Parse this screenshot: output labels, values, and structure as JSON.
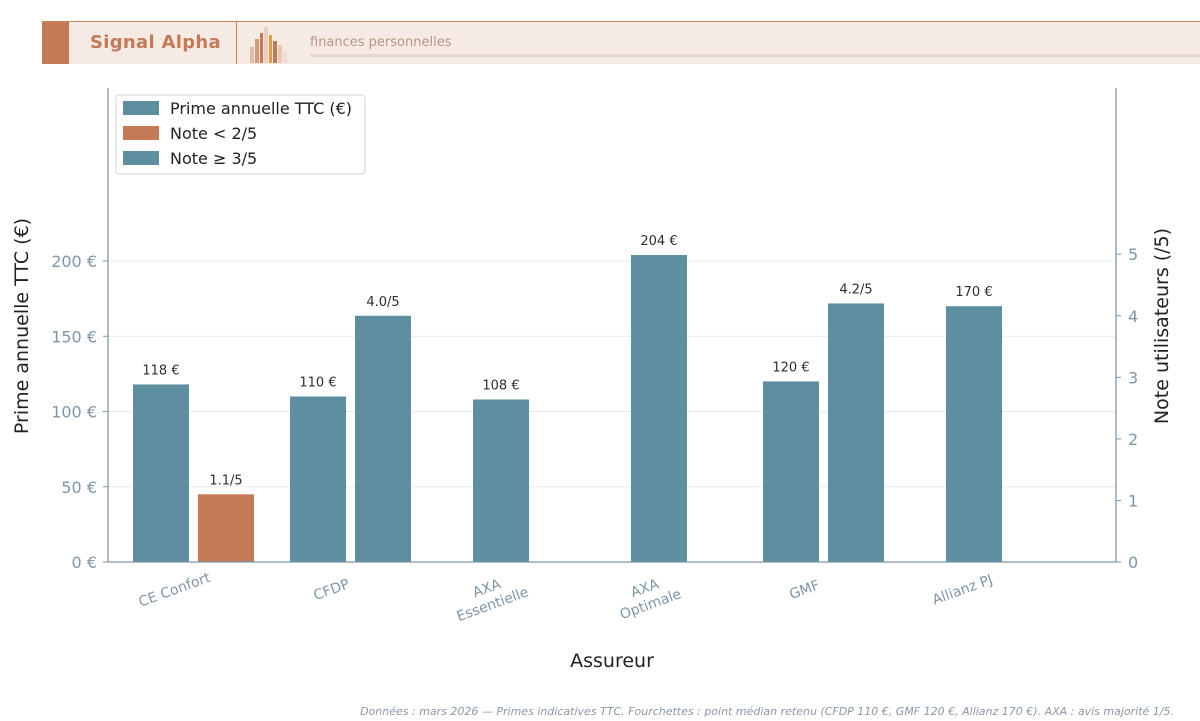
{
  "header": {
    "brand": "Signal Alpha",
    "tagline": "finances personnelles"
  },
  "colors": {
    "accent": "#c47a57",
    "bar_teal": "#5d8fa0",
    "axis": "#7e97a8",
    "header_bg": "#f6ebe4"
  },
  "chart_data": {
    "type": "bar",
    "xlabel": "Assureur",
    "ylabel_left": "Prime annuelle TTC (€)",
    "ylabel_right": "Note utilisateurs (/5)",
    "ylim_left": [
      0,
      315
    ],
    "ylim_right": [
      0,
      7.7
    ],
    "left_ticks": [
      "0 €",
      "50 €",
      "100 €",
      "150 €",
      "200 €"
    ],
    "left_tick_values": [
      0,
      50,
      100,
      150,
      200
    ],
    "right_ticks": [
      "0",
      "1",
      "2",
      "3",
      "4",
      "5"
    ],
    "right_tick_values": [
      0,
      1,
      2,
      3,
      4,
      5
    ],
    "grid": true,
    "legend_position": "top-left",
    "legend": [
      {
        "label": "Prime annuelle TTC (€)",
        "color": "#5d8fa0"
      },
      {
        "label": "Note < 2/5",
        "color": "#c47a57"
      },
      {
        "label": "Note ≥ 3/5",
        "color": "#5d8fa0"
      }
    ],
    "categories": [
      [
        "CE Confort"
      ],
      [
        "CFDP"
      ],
      [
        "AXA",
        "Essentielle"
      ],
      [
        "AXA",
        "Optimale"
      ],
      [
        "GMF"
      ],
      [
        "Allianz PJ"
      ]
    ],
    "premium": {
      "values": [
        118,
        110,
        108,
        204,
        120,
        170
      ],
      "labels": [
        "118 €",
        "110 €",
        "108 €",
        "204 €",
        "120 €",
        "170 €"
      ]
    },
    "rating": {
      "values": [
        1.1,
        4.0,
        null,
        null,
        4.2,
        null
      ],
      "labels": [
        "1.1/5",
        "4.0/5",
        "",
        "",
        "4.2/5",
        ""
      ]
    }
  },
  "footer": {
    "note": "Données : mars 2026 — Primes indicatives TTC. Fourchettes : point médian retenu (CFDP 110 €, GMF 120 €, Allianz 170 €). AXA : avis majorité 1/5."
  }
}
